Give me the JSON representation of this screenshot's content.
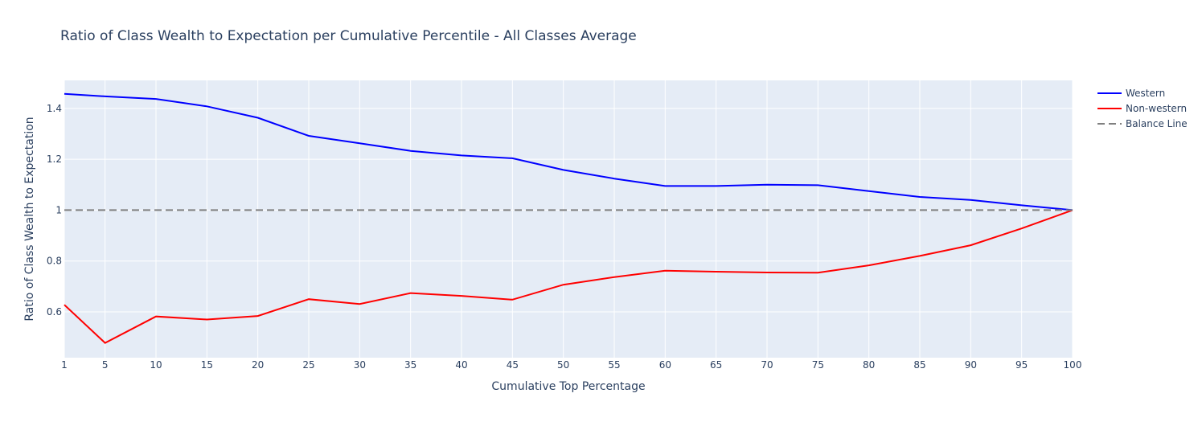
{
  "chart_data": {
    "type": "line",
    "title": "Ratio of Class Wealth to Expectation per Cumulative Percentile - All Classes Average",
    "xlabel": "Cumulative Top Percentage",
    "ylabel": "Ratio of Class Wealth to Expectation",
    "categories": [
      "1",
      "5",
      "10",
      "15",
      "20",
      "25",
      "30",
      "35",
      "40",
      "45",
      "50",
      "55",
      "60",
      "65",
      "70",
      "75",
      "80",
      "85",
      "90",
      "95",
      "100"
    ],
    "ylim": [
      0.42,
      1.51
    ],
    "yticks": [
      0.6,
      0.8,
      1,
      1.2,
      1.4
    ],
    "ytick_labels": [
      "0.6",
      "0.8",
      "1",
      "1.2",
      "1.4"
    ],
    "grid": true,
    "legend_position": "top-right",
    "series": [
      {
        "name": "Western",
        "color": "#0000ff",
        "dash": "solid",
        "values": [
          1.457,
          1.447,
          1.437,
          1.408,
          1.363,
          1.292,
          1.263,
          1.233,
          1.215,
          1.204,
          1.158,
          1.124,
          1.095,
          1.095,
          1.1,
          1.098,
          1.075,
          1.052,
          1.04,
          1.019,
          1.0
        ]
      },
      {
        "name": "Non-western",
        "color": "#ff0000",
        "dash": "solid",
        "values": [
          0.628,
          0.478,
          0.582,
          0.57,
          0.584,
          0.65,
          0.631,
          0.674,
          0.663,
          0.648,
          0.707,
          0.737,
          0.762,
          0.758,
          0.755,
          0.754,
          0.783,
          0.82,
          0.862,
          0.928,
          1.0
        ]
      },
      {
        "name": "Balance Line",
        "color": "#808080",
        "dash": "dash",
        "values": [
          1,
          1,
          1,
          1,
          1,
          1,
          1,
          1,
          1,
          1,
          1,
          1,
          1,
          1,
          1,
          1,
          1,
          1,
          1,
          1,
          1
        ]
      }
    ]
  }
}
